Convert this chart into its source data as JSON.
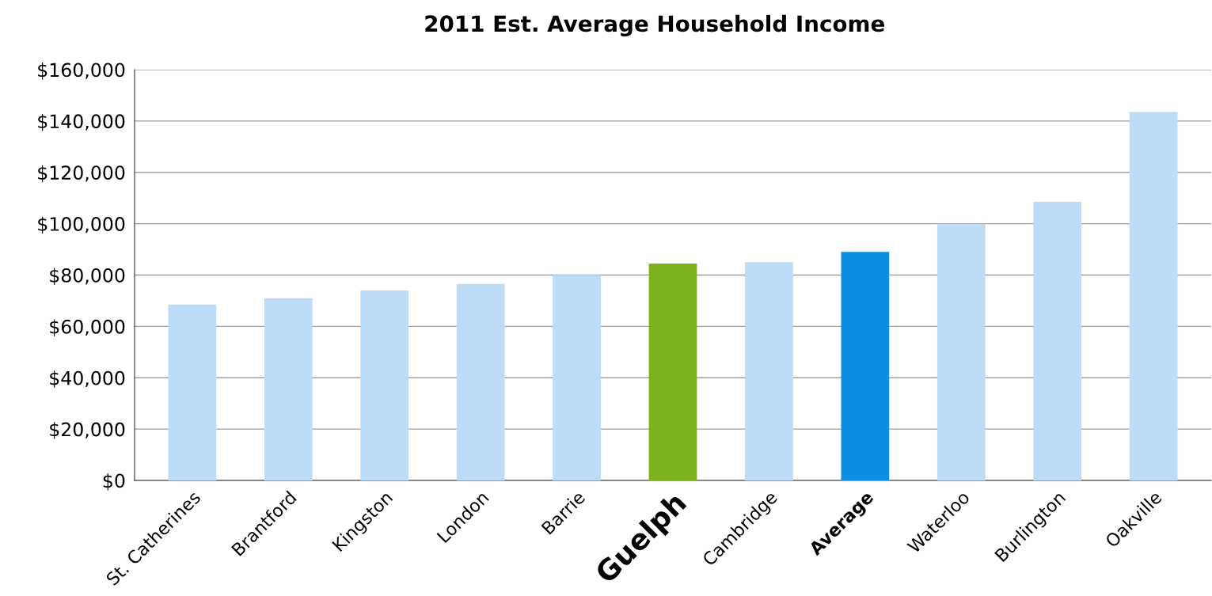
{
  "chart_data": {
    "type": "bar",
    "title": "2011 Est. Average Household Income",
    "categories": [
      "St. Catherines",
      "Brantford",
      "Kingston",
      "London",
      "Barrie",
      "Guelph",
      "Cambridge",
      "Average",
      "Waterloo",
      "Burlington",
      "Oakville"
    ],
    "values": [
      68500,
      71000,
      74000,
      76500,
      80000,
      84500,
      85000,
      89000,
      100000,
      108500,
      143500
    ],
    "colors": [
      "#bddcf7",
      "#bddcf7",
      "#bddcf7",
      "#bddcf7",
      "#bddcf7",
      "#7db21f",
      "#bddcf7",
      "#0a8fe3",
      "#bddcf7",
      "#bddcf7",
      "#bddcf7"
    ],
    "ylim": [
      0,
      160000
    ],
    "yticks": [
      {
        "value": 0,
        "label": "$0"
      },
      {
        "value": 20000,
        "label": "$20,000"
      },
      {
        "value": 40000,
        "label": "$40,000"
      },
      {
        "value": 60000,
        "label": "$60,000"
      },
      {
        "value": 80000,
        "label": "$80,000"
      },
      {
        "value": 100000,
        "label": "$100,000"
      },
      {
        "value": 120000,
        "label": "$120,000"
      },
      {
        "value": 140000,
        "label": "$140,000"
      },
      {
        "value": 160000,
        "label": "$160,000"
      }
    ],
    "grid": "y",
    "legend": false
  }
}
